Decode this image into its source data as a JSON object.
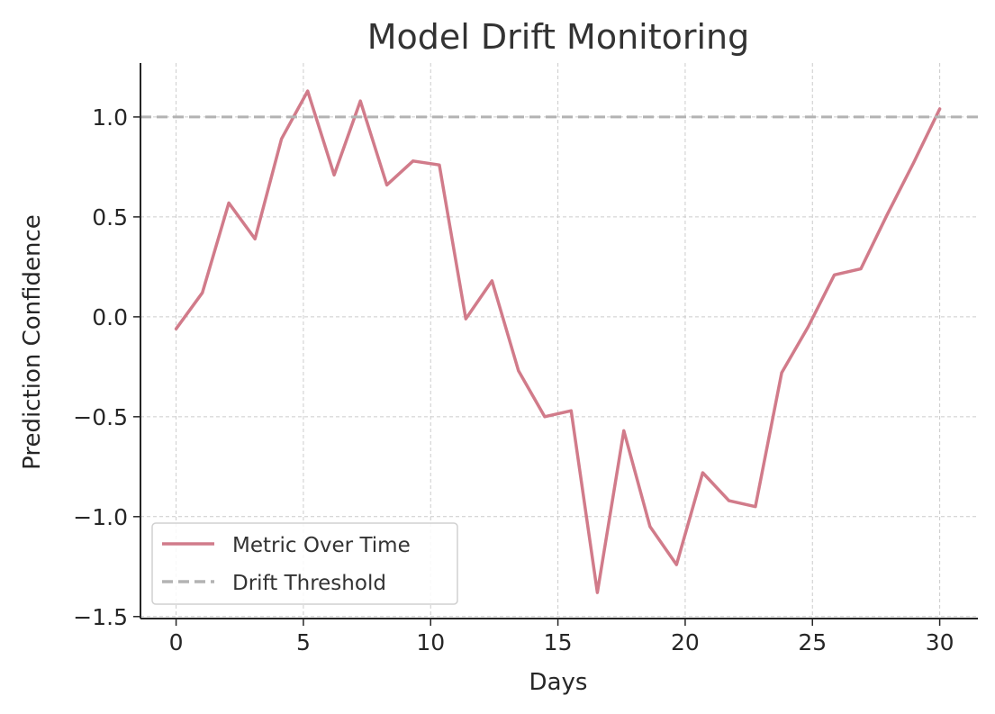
{
  "chart_data": {
    "type": "line",
    "title": "Model Drift Monitoring",
    "xlabel": "Days",
    "ylabel": "Prediction Confidence",
    "xlim": [
      -1.4,
      31.5
    ],
    "ylim": [
      -1.51,
      1.27
    ],
    "xticks": [
      0,
      5,
      10,
      15,
      20,
      25,
      30
    ],
    "yticks": [
      1.0,
      0.5,
      0.0,
      -0.5,
      -1.0,
      -1.5
    ],
    "ytick_labels": [
      "1.0",
      "0.5",
      "0.0",
      "−0.5",
      "−1.0",
      "−1.5"
    ],
    "grid": true,
    "legend_position": "lower-left",
    "series": [
      {
        "name": "Metric Over Time",
        "color": "#d17b8a",
        "style": "solid",
        "x": [
          0,
          1.03,
          2.07,
          3.1,
          4.14,
          5.17,
          6.21,
          7.24,
          8.28,
          9.31,
          10.34,
          11.38,
          12.41,
          13.45,
          14.48,
          15.52,
          16.55,
          17.59,
          18.62,
          19.66,
          20.69,
          21.72,
          22.76,
          23.79,
          24.83,
          25.86,
          26.9,
          27.93,
          28.97,
          30
        ],
        "y": [
          -0.06,
          0.12,
          0.57,
          0.39,
          0.89,
          1.13,
          0.71,
          1.08,
          0.66,
          0.78,
          0.76,
          -0.01,
          0.18,
          -0.27,
          -0.5,
          -0.47,
          -1.38,
          -0.57,
          -1.05,
          -1.24,
          -0.78,
          -0.92,
          -0.95,
          -0.28,
          -0.05,
          0.21,
          0.24,
          0.51,
          0.77,
          1.04
        ]
      },
      {
        "name": "Drift Threshold",
        "color": "#b3b3b3",
        "style": "dashed",
        "hline": 1.0
      }
    ]
  }
}
